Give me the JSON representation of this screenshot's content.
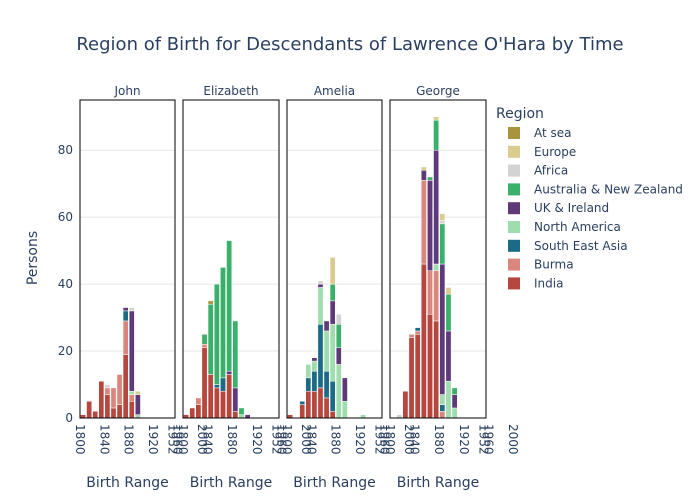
{
  "chart_data": {
    "type": "bar",
    "stacked": true,
    "title": "Region of Birth for Descendants of Lawrence O'Hara by Time",
    "xlabel": "Birth Range",
    "ylabel": "Persons",
    "ylim": [
      0,
      95
    ],
    "y_ticks": [
      0,
      20,
      40,
      60,
      80
    ],
    "x_tick_labels": [
      "1800",
      "1840",
      "1880",
      "1920",
      "1960",
      "2000",
      "1952"
    ],
    "grid": true,
    "legend_title": "Region",
    "legend_position": "right",
    "regions": [
      {
        "name": "At sea",
        "color": "#a8943f"
      },
      {
        "name": "Europe",
        "color": "#d9cc8e"
      },
      {
        "name": "Africa",
        "color": "#d3d3d3"
      },
      {
        "name": "Australia & New Zealand",
        "color": "#3bb06a"
      },
      {
        "name": "UK & Ireland",
        "color": "#5e3a7a"
      },
      {
        "name": "North America",
        "color": "#9fdcae"
      },
      {
        "name": "South East Asia",
        "color": "#1c6b86"
      },
      {
        "name": "Burma",
        "color": "#d9877c"
      },
      {
        "name": "India",
        "color": "#b5473e"
      }
    ],
    "stack_order": [
      "India",
      "Burma",
      "South East Asia",
      "North America",
      "UK & Ireland",
      "Australia & New Zealand",
      "Africa",
      "Europe",
      "At sea"
    ],
    "panels": [
      {
        "name": "John",
        "x": [
          1800,
          1810,
          1820,
          1830,
          1840,
          1850,
          1860,
          1870,
          1880,
          1890
        ],
        "series": {
          "India": [
            1,
            5,
            2,
            11,
            7,
            3,
            4,
            19,
            5,
            0
          ],
          "Burma": [
            0,
            0,
            0,
            0,
            2,
            6,
            9,
            10,
            2,
            0
          ],
          "South East Asia": [
            0,
            0,
            0,
            0,
            0,
            0,
            0,
            3,
            0,
            0
          ],
          "North America": [
            0,
            0,
            0,
            0,
            0,
            0,
            0,
            0,
            1,
            1
          ],
          "UK & Ireland": [
            0,
            0,
            0,
            0,
            0,
            0,
            0,
            1,
            24,
            6
          ],
          "Australia & New Zealand": [
            0,
            0,
            0,
            0,
            0,
            0,
            0,
            0,
            0,
            0
          ],
          "Africa": [
            0,
            0,
            0,
            0,
            1,
            0,
            0,
            0,
            1,
            0
          ],
          "Europe": [
            0,
            0,
            0,
            0,
            0,
            0,
            0,
            0,
            0,
            1
          ],
          "At sea": [
            0,
            0,
            0,
            0,
            0,
            0,
            0,
            0,
            0,
            0
          ]
        }
      },
      {
        "name": "Elizabeth",
        "x": [
          1800,
          1810,
          1820,
          1830,
          1840,
          1850,
          1860,
          1870,
          1880,
          1890,
          1900,
          1910,
          1920
        ],
        "series": {
          "India": [
            1,
            3,
            4,
            21,
            13,
            9,
            8,
            13,
            2,
            0,
            0,
            0,
            0
          ],
          "Burma": [
            0,
            0,
            2,
            1,
            0,
            0,
            0,
            0,
            0,
            0,
            0,
            0,
            0
          ],
          "South East Asia": [
            0,
            0,
            0,
            0,
            0,
            1,
            4,
            0,
            0,
            0,
            0,
            0,
            0
          ],
          "North America": [
            0,
            0,
            0,
            0,
            0,
            0,
            0,
            0,
            0,
            1,
            0,
            0,
            0
          ],
          "UK & Ireland": [
            0,
            0,
            0,
            0,
            0,
            0,
            0,
            1,
            7,
            0,
            1,
            0,
            0
          ],
          "Australia & New Zealand": [
            0,
            0,
            0,
            3,
            21,
            30,
            33,
            39,
            20,
            2,
            0,
            0,
            0
          ],
          "Africa": [
            0,
            0,
            0,
            0,
            0,
            0,
            0,
            0,
            0,
            0,
            0,
            0,
            0
          ],
          "Europe": [
            0,
            0,
            0,
            0,
            0,
            0,
            0,
            0,
            0,
            0,
            0,
            0,
            0
          ],
          "At sea": [
            0,
            0,
            0,
            0,
            1,
            0,
            0,
            0,
            0,
            0,
            0,
            0,
            0
          ]
        }
      },
      {
        "name": "Amelia",
        "x": [
          1800,
          1810,
          1820,
          1830,
          1840,
          1850,
          1860,
          1870,
          1880,
          1890,
          1900,
          1910,
          1920
        ],
        "series": {
          "India": [
            1,
            0,
            4,
            8,
            8,
            9,
            6,
            2,
            0,
            0,
            0,
            0,
            0
          ],
          "Burma": [
            0,
            0,
            0,
            0,
            0,
            0,
            0,
            0,
            0,
            0,
            0,
            0,
            0
          ],
          "South East Asia": [
            0,
            0,
            1,
            4,
            6,
            19,
            8,
            9,
            0,
            0,
            0,
            0,
            0
          ],
          "North America": [
            0,
            0,
            0,
            4,
            3,
            11,
            12,
            17,
            16,
            5,
            0,
            0,
            1
          ],
          "UK & Ireland": [
            0,
            0,
            0,
            0,
            1,
            1,
            3,
            7,
            5,
            7,
            0,
            0,
            0
          ],
          "Australia & New Zealand": [
            0,
            0,
            0,
            0,
            0,
            0,
            0,
            5,
            7,
            0,
            0,
            0,
            0
          ],
          "Africa": [
            0,
            0,
            0,
            0,
            0,
            1,
            0,
            0,
            3,
            0,
            0,
            0,
            0
          ],
          "Europe": [
            0,
            0,
            0,
            0,
            0,
            0,
            0,
            8,
            0,
            0,
            0,
            0,
            0
          ],
          "At sea": [
            0,
            0,
            0,
            0,
            0,
            0,
            0,
            0,
            0,
            0,
            0,
            0,
            0
          ]
        }
      },
      {
        "name": "George",
        "x": [
          1800,
          1810,
          1820,
          1830,
          1840,
          1850,
          1860,
          1870,
          1880,
          1890,
          1900,
          1910,
          1920
        ],
        "series": {
          "India": [
            0,
            0,
            8,
            24,
            25,
            46,
            31,
            29,
            0,
            0,
            0,
            0,
            0
          ],
          "Burma": [
            0,
            0,
            0,
            1,
            1,
            25,
            13,
            15,
            2,
            0,
            0,
            0,
            0
          ],
          "South East Asia": [
            0,
            0,
            0,
            0,
            1,
            0,
            0,
            0,
            2,
            0,
            0,
            0,
            0
          ],
          "North America": [
            0,
            0,
            0,
            0,
            0,
            0,
            0,
            2,
            3,
            11,
            3,
            0,
            0
          ],
          "UK & Ireland": [
            0,
            0,
            0,
            0,
            0,
            3,
            27,
            34,
            39,
            15,
            4,
            0,
            0
          ],
          "Australia & New Zealand": [
            0,
            0,
            0,
            0,
            0,
            0,
            1,
            9,
            12,
            11,
            2,
            0,
            0
          ],
          "Africa": [
            0,
            1,
            0,
            0,
            0,
            0,
            0,
            0,
            1,
            0,
            0,
            0,
            0
          ],
          "Europe": [
            0,
            0,
            0,
            0,
            0,
            1,
            0,
            1,
            2,
            2,
            0,
            0,
            0
          ],
          "At sea": [
            0,
            0,
            0,
            0,
            0,
            0,
            0,
            0,
            0,
            0,
            0,
            0,
            0
          ]
        }
      }
    ]
  }
}
